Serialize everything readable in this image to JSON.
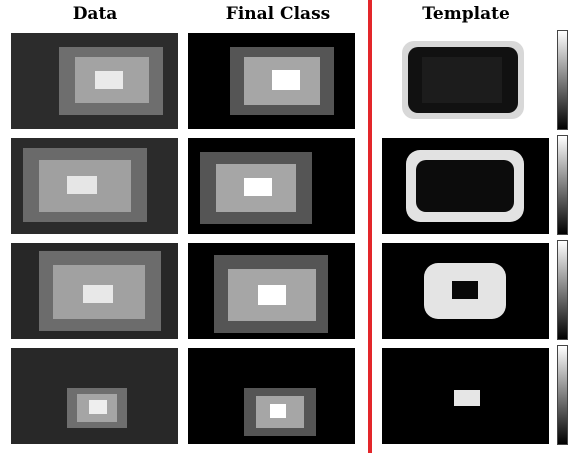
{
  "headers": {
    "data": "Data",
    "final_class": "Final Class",
    "template": "Template"
  },
  "colors": {
    "divider": "#e3262a",
    "class_outer": "#555555",
    "class_middle": "#a6a6a6",
    "class_inner": "#ffffff",
    "background": "#000000"
  },
  "rows": [
    {
      "template_pattern": "rect-outline-dark-on-light"
    },
    {
      "template_pattern": "rect-ring-bright"
    },
    {
      "template_pattern": "rect-bright-with-dark-center"
    },
    {
      "template_pattern": "small-bright-square"
    }
  ]
}
